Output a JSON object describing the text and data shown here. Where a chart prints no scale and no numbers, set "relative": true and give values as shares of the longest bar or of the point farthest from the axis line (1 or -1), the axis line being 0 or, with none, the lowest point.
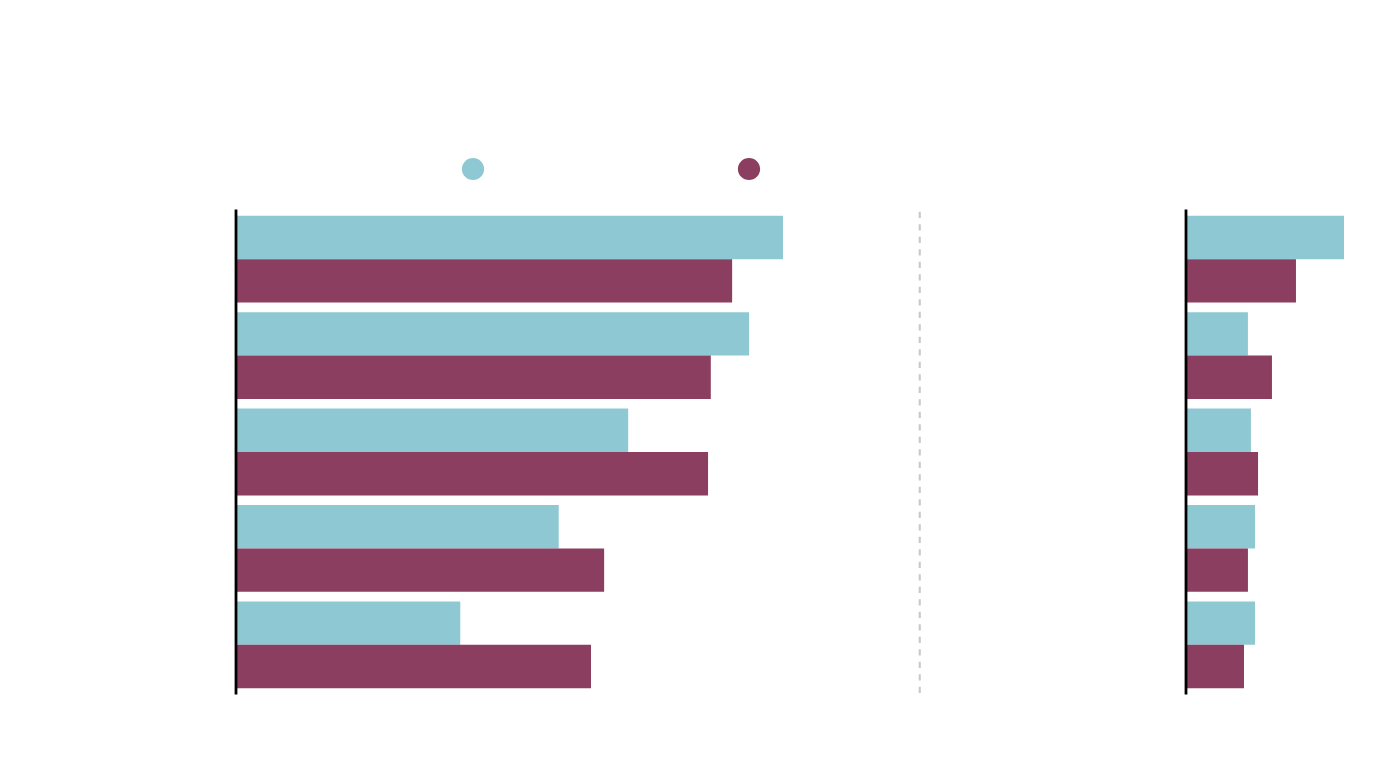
{
  "chart_data": [
    {
      "type": "bar",
      "orientation": "horizontal",
      "relative": true,
      "categories": [
        null,
        null,
        null,
        null,
        null
      ],
      "series": [
        {
          "color": "#8ec9d3",
          "values": [
            1,
            0.938,
            0.717,
            0.59,
            0.41
          ]
        },
        {
          "color": "#8b3e5f",
          "values": [
            0.907,
            0.868,
            0.863,
            0.673,
            0.649
          ]
        }
      ],
      "ref_lines": [
        {
          "axis": "x",
          "value": 1.25,
          "color": "#c8c8c8",
          "line_style": "dashed"
        }
      ]
    },
    {
      "type": "bar",
      "orientation": "horizontal",
      "relative": true,
      "categories": [
        null,
        null,
        null,
        null,
        null
      ],
      "series": [
        {
          "color": "#8ec9d3",
          "values": [
            1,
            0.392,
            0.411,
            0.437,
            0.437
          ]
        },
        {
          "color": "#8b3e5f",
          "values": [
            0.696,
            0.544,
            0.456,
            0.392,
            0.367
          ]
        }
      ]
    }
  ]
}
